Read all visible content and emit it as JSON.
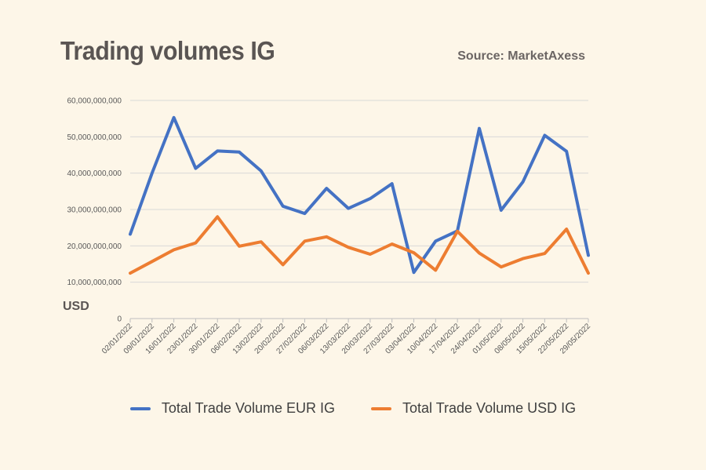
{
  "header": {
    "title": "Trading volumes IG",
    "source": "Source: MarketAxess"
  },
  "chart_data": {
    "type": "line",
    "title": "Trading volumes IG",
    "ylabel": "USD",
    "ylim": [
      0,
      60000000000
    ],
    "yticks": [
      0,
      10000000000,
      20000000000,
      30000000000,
      40000000000,
      50000000000,
      60000000000
    ],
    "ytick_labels": [
      "0",
      "10,000,000,000",
      "20,000,000,000",
      "30,000,000,000",
      "40,000,000,000",
      "50,000,000,000",
      "60,000,000,000"
    ],
    "grid": true,
    "legend_position": "bottom",
    "x": [
      "02/01/2022",
      "09/01/2022",
      "16/01/2022",
      "23/01/2022",
      "30/01/2022",
      "06/02/2022",
      "13/02/2022",
      "20/02/2022",
      "27/02/2022",
      "06/03/2022",
      "13/03/2022",
      "20/03/2022",
      "27/03/2022",
      "03/04/2022",
      "10/04/2022",
      "17/04/2022",
      "24/04/2022",
      "01/05/2022",
      "08/05/2022",
      "15/05/2022",
      "22/05/2022",
      "29/05/2022"
    ],
    "series": [
      {
        "name": "Total Trade Volume EUR IG",
        "color": "#4472c4",
        "values": [
          23200000000,
          40000000000,
          55300000000,
          41300000000,
          46100000000,
          45800000000,
          40600000000,
          30900000000,
          28900000000,
          35800000000,
          30300000000,
          33000000000,
          37100000000,
          12700000000,
          21300000000,
          24100000000,
          52300000000,
          29800000000,
          37600000000,
          50400000000,
          46000000000,
          17400000000
        ]
      },
      {
        "name": "Total Trade Volume USD IG",
        "color": "#ed7d31",
        "values": [
          12500000000,
          15700000000,
          18900000000,
          20800000000,
          28000000000,
          19900000000,
          21100000000,
          14800000000,
          21300000000,
          22500000000,
          19600000000,
          17700000000,
          20500000000,
          18100000000,
          13300000000,
          24000000000,
          18000000000,
          14200000000,
          16500000000,
          17900000000,
          24600000000,
          12500000000
        ]
      }
    ]
  }
}
